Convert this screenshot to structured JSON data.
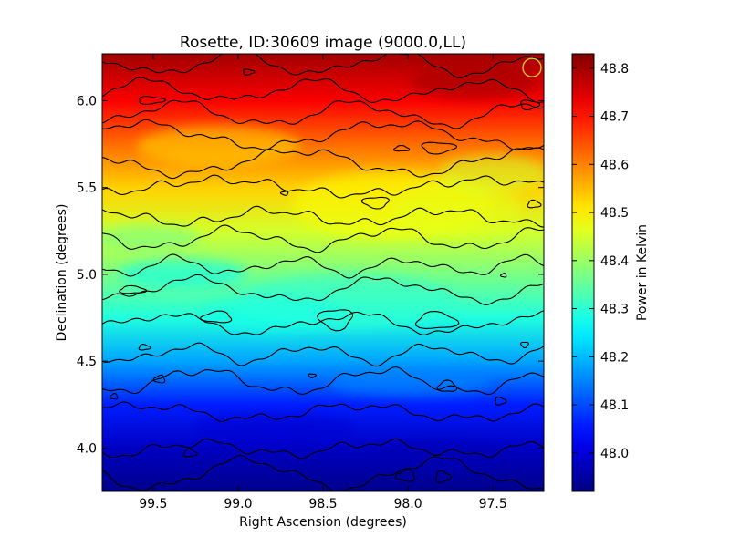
{
  "chart_data": {
    "type": "heatmap",
    "title": "Rosette, ID:30609 image (9000.0,LL)",
    "xlabel": "Right Ascension (degrees)",
    "ylabel": "Declination (degrees)",
    "xlim": [
      99.8,
      97.2
    ],
    "ylim": [
      3.75,
      6.27
    ],
    "x_ticks": [
      "99.5",
      "99.0",
      "98.5",
      "98.0",
      "97.5"
    ],
    "x_tick_values": [
      99.5,
      99.0,
      98.5,
      98.0,
      97.5
    ],
    "y_ticks": [
      "4.0",
      "4.5",
      "5.0",
      "5.5",
      "6.0"
    ],
    "y_tick_values": [
      4.0,
      4.5,
      5.0,
      5.5,
      6.0
    ],
    "colorbar": {
      "label": "Power in Kelvin",
      "range": [
        47.92,
        48.83
      ],
      "ticks": [
        "48.0",
        "48.1",
        "48.2",
        "48.3",
        "48.4",
        "48.5",
        "48.6",
        "48.7",
        "48.8"
      ],
      "tick_values": [
        48.0,
        48.1,
        48.2,
        48.3,
        48.4,
        48.5,
        48.6,
        48.7,
        48.8
      ],
      "colormap": "jet"
    },
    "field_profile": [
      {
        "dec": 3.75,
        "value": 47.93
      },
      {
        "dec": 4.0,
        "value": 47.98
      },
      {
        "dec": 4.25,
        "value": 48.06
      },
      {
        "dec": 4.5,
        "value": 48.18
      },
      {
        "dec": 4.75,
        "value": 48.29
      },
      {
        "dec": 5.0,
        "value": 48.37
      },
      {
        "dec": 5.25,
        "value": 48.45
      },
      {
        "dec": 5.5,
        "value": 48.53
      },
      {
        "dec": 5.75,
        "value": 48.62
      },
      {
        "dec": 6.0,
        "value": 48.72
      },
      {
        "dec": 6.27,
        "value": 48.8
      }
    ],
    "contour_count": 10,
    "beam_marker": {
      "ra": 97.27,
      "dec": 6.19,
      "color": "#d4c830"
    }
  }
}
